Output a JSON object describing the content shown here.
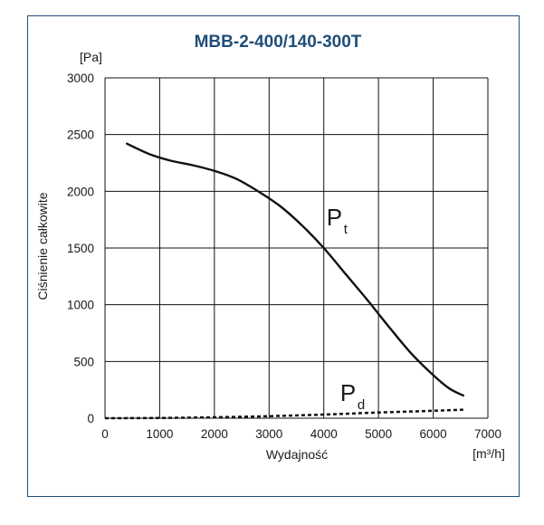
{
  "chart_data": {
    "type": "line",
    "title": "MBB-2-400/140-300T",
    "xlabel": "Wydajność",
    "x_unit": "[m³/h]",
    "ylabel": "Ciśnienie całkowite",
    "y_unit": "[Pa]",
    "xlim": [
      0,
      7000
    ],
    "ylim": [
      0,
      3000
    ],
    "x_ticks": [
      "0",
      "1000",
      "2000",
      "3000",
      "4000",
      "5000",
      "6000",
      "7000"
    ],
    "y_ticks": [
      "0",
      "500",
      "1000",
      "1500",
      "2000",
      "2500",
      "3000"
    ],
    "grid": true,
    "series": [
      {
        "name": "Pt",
        "style": "solid",
        "x": [
          400,
          800,
          1200,
          1600,
          2000,
          2400,
          2800,
          3200,
          3600,
          4000,
          4400,
          4800,
          5200,
          5600,
          6000,
          6300,
          6550
        ],
        "y": [
          2420,
          2330,
          2270,
          2230,
          2180,
          2110,
          2000,
          1870,
          1700,
          1500,
          1270,
          1040,
          800,
          570,
          380,
          260,
          200
        ]
      },
      {
        "name": "Pd",
        "style": "dashed",
        "x": [
          0,
          1000,
          2000,
          3000,
          4000,
          5000,
          6000,
          6550
        ],
        "y": [
          0,
          2,
          8,
          18,
          32,
          50,
          65,
          75
        ]
      }
    ],
    "annotations": [
      {
        "main": "P",
        "sub": "t",
        "series": "Pt"
      },
      {
        "main": "P",
        "sub": "d",
        "series": "Pd"
      }
    ]
  }
}
